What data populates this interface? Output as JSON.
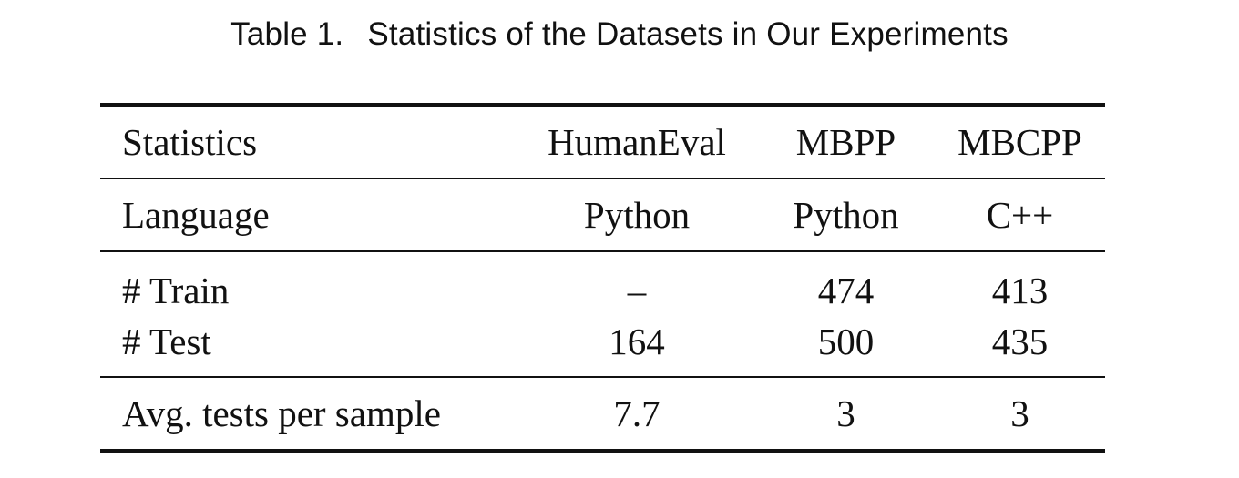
{
  "caption": {
    "label": "Table 1.",
    "title": "Statistics of the Datasets in Our Experiments"
  },
  "table": {
    "headers": [
      "Statistics",
      "HumanEval",
      "MBPP",
      "MBCPP"
    ],
    "language_row": [
      "Language",
      "Python",
      "Python",
      "C++"
    ],
    "split_rows": [
      [
        "# Train",
        "–",
        "474",
        "413"
      ],
      [
        "# Test",
        "164",
        "500",
        "435"
      ]
    ],
    "avg_row": [
      "Avg. tests per sample",
      "7.7",
      "3",
      "3"
    ]
  }
}
